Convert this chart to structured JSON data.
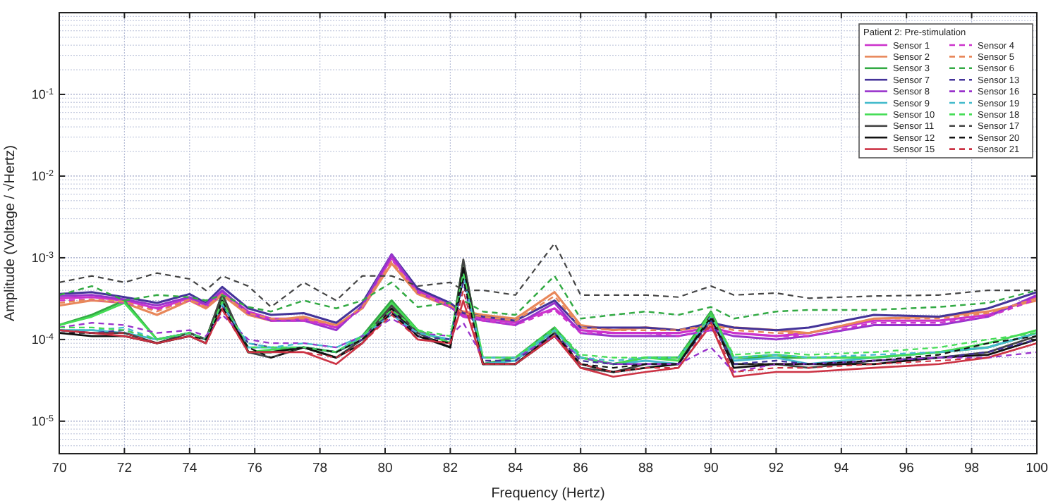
{
  "chart_data": {
    "type": "line",
    "xlabel": "Frequency (Hertz)",
    "ylabel": "Amplitude (Voltage / √Hertz)",
    "legend_title": "Patient 2: Pre-stimulation",
    "legend": "top right",
    "grid": true,
    "log": true,
    "xlim": [
      70,
      100
    ],
    "xticks": [
      70,
      72,
      74,
      76,
      78,
      80,
      82,
      84,
      86,
      88,
      90,
      92,
      94,
      96,
      98,
      100
    ],
    "ylim": [
      4e-06,
      1
    ],
    "yticks": [
      {
        "value": 1e-05,
        "label": "10$^{-5}$"
      },
      {
        "value": 0.0001,
        "label": "10$^{-4}$"
      },
      {
        "value": 0.001,
        "label": "10$^{-3}$"
      },
      {
        "value": 0.01,
        "label": "10$^{-2}$"
      },
      {
        "value": 0.1,
        "label": "10$^{-1}$"
      }
    ],
    "x": [
      70,
      71,
      72,
      73,
      74,
      74.5,
      75,
      75.8,
      76.5,
      77.5,
      78.5,
      79.3,
      80.2,
      81,
      82,
      82.4,
      83,
      84,
      85.2,
      86,
      87,
      88,
      89,
      90,
      90.7,
      92,
      93,
      95,
      97,
      98.5,
      100
    ],
    "series": [
      {
        "name": "Sensor 1",
        "color": "#cc33cc",
        "line_style": "solid",
        "values": [
          0.00032,
          0.00033,
          0.0003,
          0.00024,
          0.00032,
          0.00026,
          0.00038,
          0.00022,
          0.00018,
          0.00018,
          0.00014,
          0.00025,
          0.001,
          0.0004,
          0.00026,
          0.0002,
          0.00018,
          0.00016,
          0.00024,
          0.00013,
          0.00012,
          0.00012,
          0.00012,
          0.00014,
          0.00012,
          0.00011,
          0.00012,
          0.00017,
          0.00017,
          0.0002,
          0.00033
        ]
      },
      {
        "name": "Sensor 2",
        "color": "#e8875a",
        "line_style": "solid",
        "values": [
          0.00026,
          0.0003,
          0.00028,
          0.0002,
          0.0003,
          0.00024,
          0.00035,
          0.0002,
          0.00017,
          0.00019,
          0.00015,
          0.00024,
          0.00085,
          0.00036,
          0.00025,
          0.00022,
          0.0002,
          0.00018,
          0.00038,
          0.00015,
          0.00013,
          0.00014,
          0.00013,
          0.00015,
          0.00014,
          0.00013,
          0.00012,
          0.00018,
          0.00019,
          0.00022,
          0.0003
        ]
      },
      {
        "name": "Sensor 3",
        "color": "#33aa44",
        "line_style": "solid",
        "values": [
          0.00015,
          0.0002,
          0.0003,
          0.0001,
          0.00012,
          0.0001,
          0.00035,
          7e-05,
          7e-05,
          8e-05,
          7e-05,
          0.00011,
          0.0003,
          0.00013,
          9e-05,
          0.0009,
          5e-05,
          6e-05,
          0.00014,
          6e-05,
          5e-05,
          6e-05,
          6e-05,
          0.00022,
          6e-05,
          6e-05,
          6e-05,
          6e-05,
          7e-05,
          8e-05,
          0.00012
        ]
      },
      {
        "name": "Sensor 7",
        "color": "#443399",
        "line_style": "solid",
        "values": [
          0.00036,
          0.00038,
          0.00033,
          0.00028,
          0.00036,
          0.00028,
          0.00044,
          0.00024,
          0.0002,
          0.00021,
          0.00016,
          0.00028,
          0.0011,
          0.00042,
          0.00028,
          0.00021,
          0.00019,
          0.00017,
          0.0003,
          0.00014,
          0.00014,
          0.00014,
          0.00013,
          0.00016,
          0.00014,
          0.00013,
          0.00014,
          0.0002,
          0.00019,
          0.00024,
          0.00038
        ]
      },
      {
        "name": "Sensor 8",
        "color": "#9933cc",
        "line_style": "solid",
        "values": [
          0.00034,
          0.00035,
          0.00031,
          0.00026,
          0.00033,
          0.00027,
          0.0004,
          0.00021,
          0.00017,
          0.00017,
          0.00013,
          0.00026,
          0.0011,
          0.00038,
          0.00025,
          0.00019,
          0.00017,
          0.00015,
          0.00028,
          0.00012,
          0.00011,
          0.00011,
          0.00011,
          0.00013,
          0.00011,
          0.0001,
          0.00011,
          0.00015,
          0.00015,
          0.00019,
          0.00035
        ]
      },
      {
        "name": "Sensor 9",
        "color": "#44bbcc",
        "line_style": "solid",
        "values": [
          0.00013,
          0.00013,
          0.00012,
          0.0001,
          0.00012,
          0.0001,
          0.00028,
          8e-05,
          8e-05,
          8e-05,
          7e-05,
          0.00011,
          0.00022,
          0.00012,
          0.0001,
          0.0007,
          5e-05,
          5.5e-05,
          0.00013,
          6e-05,
          5e-05,
          5.5e-05,
          5e-05,
          0.00018,
          5.5e-05,
          6e-05,
          5e-05,
          6e-05,
          7e-05,
          8e-05,
          0.00012
        ]
      },
      {
        "name": "Sensor 10",
        "color": "#44dd55",
        "line_style": "solid",
        "values": [
          0.00015,
          0.00019,
          0.00028,
          0.0001,
          0.00012,
          0.0001,
          0.00034,
          7e-05,
          7.5e-05,
          8e-05,
          7e-05,
          0.0001,
          0.00028,
          0.00013,
          9e-05,
          0.00085,
          6e-05,
          6e-05,
          0.00013,
          6e-05,
          5e-05,
          6e-05,
          5.5e-05,
          0.00021,
          6e-05,
          6.5e-05,
          6e-05,
          6e-05,
          7e-05,
          9e-05,
          0.00013
        ]
      },
      {
        "name": "Sensor 11",
        "color": "#444444",
        "line_style": "solid",
        "values": [
          0.00013,
          0.00012,
          0.00012,
          9e-05,
          0.00012,
          0.0001,
          0.00036,
          7e-05,
          6e-05,
          8e-05,
          6e-05,
          0.0001,
          0.00026,
          0.00012,
          8e-05,
          0.00095,
          5e-05,
          5e-05,
          0.00012,
          4.5e-05,
          4e-05,
          5e-05,
          5e-05,
          0.0002,
          5e-05,
          5e-05,
          4.5e-05,
          5.5e-05,
          6e-05,
          7e-05,
          0.00011
        ]
      },
      {
        "name": "Sensor 12",
        "color": "#111111",
        "line_style": "solid",
        "values": [
          0.00012,
          0.00011,
          0.00011,
          9e-05,
          0.00011,
          9e-05,
          0.0003,
          7e-05,
          7e-05,
          8e-05,
          6e-05,
          9e-05,
          0.00024,
          0.00011,
          8e-05,
          0.00075,
          5e-05,
          5e-05,
          0.00011,
          5e-05,
          4e-05,
          4.5e-05,
          5e-05,
          0.00019,
          4.5e-05,
          5e-05,
          5e-05,
          5e-05,
          6e-05,
          6.5e-05,
          0.0001
        ]
      },
      {
        "name": "Sensor 15",
        "color": "#cc3344",
        "line_style": "solid",
        "values": [
          0.00013,
          0.00012,
          0.00011,
          9e-05,
          0.00011,
          9e-05,
          0.00024,
          7e-05,
          7e-05,
          7e-05,
          5e-05,
          9e-05,
          0.00022,
          0.0001,
          9e-05,
          0.0003,
          5e-05,
          5e-05,
          0.00011,
          4.5e-05,
          3.5e-05,
          4e-05,
          4.5e-05,
          0.00015,
          3.5e-05,
          4e-05,
          4e-05,
          4.5e-05,
          5e-05,
          6e-05,
          9e-05
        ]
      },
      {
        "name": "Sensor 4",
        "color": "#cc33cc",
        "line_style": "dashed",
        "values": [
          0.0003,
          0.00031,
          0.00028,
          0.00023,
          0.0003,
          0.00025,
          0.00036,
          0.00021,
          0.00017,
          0.00017,
          0.00014,
          0.00024,
          0.00095,
          0.00038,
          0.00025,
          0.00019,
          0.00017,
          0.00015,
          0.00023,
          0.00012,
          0.00012,
          0.00012,
          0.00011,
          0.00013,
          0.00012,
          0.00011,
          0.00011,
          0.00016,
          0.00016,
          0.00019,
          0.00031
        ]
      },
      {
        "name": "Sensor 5",
        "color": "#e8875a",
        "line_style": "dashed",
        "values": [
          0.00028,
          0.00031,
          0.00029,
          0.00022,
          0.00031,
          0.00025,
          0.00036,
          0.00021,
          0.00018,
          0.00018,
          0.00015,
          0.00025,
          0.0009,
          0.00037,
          0.00026,
          0.00021,
          0.00019,
          0.00017,
          0.00034,
          0.00014,
          0.00013,
          0.00013,
          0.00013,
          0.00015,
          0.00013,
          0.00012,
          0.00012,
          0.00018,
          0.00018,
          0.00021,
          0.00032
        ]
      },
      {
        "name": "Sensor 6",
        "color": "#33aa44",
        "line_style": "dashed",
        "values": [
          0.00035,
          0.00045,
          0.0003,
          0.00035,
          0.00033,
          0.0003,
          0.00035,
          0.00025,
          0.00022,
          0.0003,
          0.00024,
          0.0003,
          0.0005,
          0.00025,
          0.00028,
          0.0003,
          0.00022,
          0.0002,
          0.0006,
          0.00018,
          0.0002,
          0.00022,
          0.0002,
          0.00025,
          0.00018,
          0.00022,
          0.00023,
          0.00023,
          0.00025,
          0.00028,
          0.0004
        ]
      },
      {
        "name": "Sensor 13",
        "color": "#443399",
        "line_style": "dashed",
        "values": [
          0.00013,
          0.00012,
          0.00013,
          0.0001,
          0.00012,
          0.0001,
          0.00026,
          9e-05,
          8e-05,
          8e-05,
          7e-05,
          0.0001,
          0.00022,
          0.00011,
          0.0001,
          0.0005,
          5.5e-05,
          5.5e-05,
          0.00012,
          5.5e-05,
          5e-05,
          5e-05,
          5e-05,
          0.00017,
          5e-05,
          5.5e-05,
          5e-05,
          5.5e-05,
          6e-05,
          7e-05,
          0.0001
        ]
      },
      {
        "name": "Sensor 16",
        "color": "#9933cc",
        "line_style": "dashed",
        "values": [
          0.00014,
          0.00016,
          0.00015,
          0.00012,
          0.00013,
          0.00011,
          0.0002,
          0.0001,
          9e-05,
          9e-05,
          8e-05,
          0.00011,
          0.00018,
          0.00012,
          0.00011,
          0.00016,
          6e-05,
          6e-05,
          0.00011,
          6e-05,
          5e-05,
          5e-05,
          5e-05,
          8e-05,
          4e-05,
          5e-05,
          5e-05,
          5.5e-05,
          6e-05,
          6e-05,
          7e-05
        ]
      },
      {
        "name": "Sensor 19",
        "color": "#44bbcc",
        "line_style": "dashed",
        "values": [
          0.00013,
          0.00013,
          0.00014,
          0.0001,
          0.00012,
          0.0001,
          0.00027,
          9e-05,
          8e-05,
          9e-05,
          8e-05,
          0.00011,
          0.0002,
          0.00012,
          0.0001,
          0.0006,
          6e-05,
          6e-05,
          0.00013,
          6e-05,
          5.5e-05,
          6e-05,
          6e-05,
          0.00019,
          6e-05,
          6.5e-05,
          6e-05,
          6.5e-05,
          7e-05,
          8e-05,
          0.00012
        ]
      },
      {
        "name": "Sensor 18",
        "color": "#44dd55",
        "line_style": "dashed",
        "values": [
          0.00014,
          0.00014,
          0.00013,
          0.0001,
          0.00012,
          0.0001,
          0.00029,
          8e-05,
          8e-05,
          8e-05,
          7e-05,
          0.00011,
          0.00023,
          0.00013,
          0.00011,
          0.00065,
          6e-05,
          6e-05,
          0.00014,
          6.5e-05,
          6e-05,
          6e-05,
          6e-05,
          0.0002,
          6.5e-05,
          7e-05,
          6.5e-05,
          7e-05,
          8e-05,
          0.0001,
          0.00012
        ]
      },
      {
        "name": "Sensor 17",
        "color": "#444444",
        "line_style": "dashed",
        "values": [
          0.0005,
          0.0006,
          0.0005,
          0.00065,
          0.00055,
          0.0004,
          0.0006,
          0.00045,
          0.00025,
          0.0005,
          0.0003,
          0.0006,
          0.0006,
          0.00045,
          0.0005,
          0.0004,
          0.0004,
          0.00035,
          0.0015,
          0.00035,
          0.00035,
          0.00035,
          0.00033,
          0.00045,
          0.00035,
          0.00037,
          0.00032,
          0.00034,
          0.00035,
          0.0004,
          0.0004
        ]
      },
      {
        "name": "Sensor 20",
        "color": "#111111",
        "line_style": "dashed",
        "values": [
          0.00012,
          0.00012,
          0.00012,
          9e-05,
          0.00011,
          0.0001,
          0.00025,
          8e-05,
          6e-05,
          8e-05,
          7e-05,
          0.0001,
          0.00021,
          0.00011,
          9e-05,
          0.00055,
          5e-05,
          5e-05,
          0.00012,
          5e-05,
          4.5e-05,
          5e-05,
          5e-05,
          0.00018,
          5e-05,
          5e-05,
          5e-05,
          5.5e-05,
          6.5e-05,
          9e-05,
          0.00011
        ]
      },
      {
        "name": "Sensor 21",
        "color": "#cc3344",
        "line_style": "dashed",
        "values": [
          0.00013,
          0.00012,
          0.00012,
          9e-05,
          0.00011,
          9e-05,
          0.00023,
          7e-05,
          7e-05,
          7e-05,
          6e-05,
          9e-05,
          0.0002,
          0.0001,
          9e-05,
          0.0004,
          5e-05,
          5e-05,
          0.00011,
          5e-05,
          4e-05,
          4.5e-05,
          4.5e-05,
          0.00016,
          4e-05,
          4.5e-05,
          4.5e-05,
          5e-05,
          5.5e-05,
          6e-05,
          9e-05
        ]
      }
    ]
  }
}
